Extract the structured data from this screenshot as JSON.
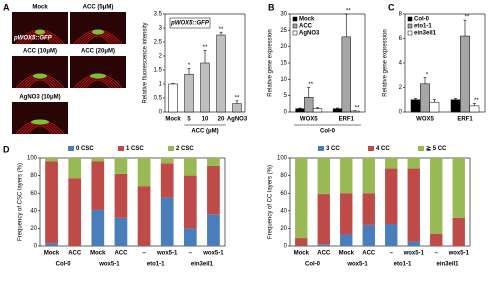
{
  "panel_a": {
    "letter": "A",
    "images": [
      "Mock",
      "ACC (5μM)",
      "ACC (10μM)",
      "ACC (20μM)",
      "AgNO3 (10μM)"
    ],
    "overlay": "pWOX5::GFP"
  },
  "chart_data": [
    {
      "type": "bar",
      "ylabel": "Relative fluorescence intensity",
      "inset_label": "pWOX5::GFP",
      "categories": [
        "Mock",
        "5",
        "10",
        "20",
        "AgNO3"
      ],
      "xlabel": "ACC (μM)",
      "values": [
        1,
        1.35,
        1.75,
        2.75,
        0.3
      ],
      "errors": [
        0.02,
        0.2,
        0.45,
        0.1,
        0.1
      ],
      "annotations": [
        null,
        "*",
        "**",
        "**",
        "**"
      ],
      "colors": [
        "#ffffff",
        "#bfbfbf",
        "#bfbfbf",
        "#bfbfbf",
        "#bfbfbf"
      ],
      "ylim": [
        0,
        3.5
      ],
      "yticks": [
        0,
        0.5,
        1,
        1.5,
        2,
        2.5,
        3,
        3.5
      ]
    },
    {
      "type": "grouped_bar",
      "panel": "B",
      "ylabel": "Relative gene expression",
      "xlabel": "Col-0",
      "categories": [
        "WOX5",
        "ERF1"
      ],
      "series": [
        {
          "name": "Mock",
          "color": "#000000",
          "values": [
            1,
            1
          ],
          "errors": [
            0.2,
            0.2
          ],
          "annotations": [
            null,
            null
          ]
        },
        {
          "name": "ACC",
          "color": "#a6a6a6",
          "values": [
            4.5,
            23
          ],
          "errors": [
            3,
            7
          ],
          "annotations": [
            "**",
            "**"
          ]
        },
        {
          "name": "AgNO3",
          "color": "#ffffff",
          "values": [
            1,
            0.3
          ],
          "errors": [
            0.3,
            0.1
          ],
          "annotations": [
            null,
            "**"
          ]
        }
      ],
      "ylim": [
        0,
        30
      ],
      "yticks": [
        0,
        5,
        10,
        15,
        20,
        25,
        30
      ]
    },
    {
      "type": "grouped_bar",
      "panel": "C",
      "ylabel": "Relative gene expression",
      "categories": [
        "WOX5",
        "ERF1"
      ],
      "series": [
        {
          "name": "Col-0",
          "color": "#000000",
          "values": [
            1,
            1
          ],
          "errors": [
            0.1,
            0.1
          ],
          "annotations": [
            null,
            null
          ]
        },
        {
          "name": "eto1-1",
          "color": "#a6a6a6",
          "values": [
            2.3,
            6.2
          ],
          "errors": [
            0.5,
            1.3
          ],
          "annotations": [
            "*",
            "**"
          ]
        },
        {
          "name": "ein3eil1",
          "color": "#ffffff",
          "values": [
            0.8,
            0.5
          ],
          "errors": [
            0.2,
            0.2
          ],
          "annotations": [
            null,
            "**"
          ]
        }
      ],
      "ylim": [
        0,
        8
      ],
      "yticks": [
        0,
        2,
        4,
        6,
        8
      ]
    },
    {
      "type": "stacked_bar",
      "panel": "D",
      "ylabel": "Frequency of CSC layers (%)",
      "categories": [
        "Mock",
        "ACC",
        "Mock",
        "ACC",
        "–",
        "wox5-1",
        "–",
        "wox5-1"
      ],
      "group_labels": [
        "Col-0",
        "wox5-1",
        "eto1-1",
        "ein3eil1"
      ],
      "series": [
        {
          "name": "0 CSC",
          "color": "#4a7ebb",
          "values": [
            3,
            0,
            41,
            32,
            0,
            55,
            20,
            36
          ]
        },
        {
          "name": "1 CSC",
          "color": "#be4b48",
          "values": [
            93,
            77,
            55,
            50,
            68,
            39,
            60,
            55
          ]
        },
        {
          "name": "2 CSC",
          "color": "#98b954",
          "values": [
            4,
            23,
            4,
            18,
            32,
            6,
            20,
            9
          ]
        }
      ],
      "ylim": [
        0,
        100
      ],
      "yticks": [
        0,
        20,
        40,
        60,
        80,
        100
      ]
    },
    {
      "type": "stacked_bar",
      "ylabel": "Frequency of CC layers (%)",
      "categories": [
        "Mock",
        "ACC",
        "Mock",
        "ACC",
        "–",
        "wox5-1",
        "–",
        "wox5-1"
      ],
      "group_labels": [
        "Col-0",
        "wox5-1",
        "eto1-1",
        "ein3eil1"
      ],
      "series": [
        {
          "name": "3 CC",
          "color": "#4a7ebb",
          "values": [
            0,
            2,
            13,
            24,
            25,
            5,
            0,
            0
          ]
        },
        {
          "name": "4 CC",
          "color": "#be4b48",
          "values": [
            9,
            57,
            47,
            36,
            63,
            83,
            14,
            32
          ]
        },
        {
          "name": "≧ 5 CC",
          "color": "#98b954",
          "values": [
            91,
            41,
            40,
            40,
            12,
            12,
            86,
            68
          ]
        }
      ],
      "ylim": [
        0,
        100
      ],
      "yticks": [
        0,
        20,
        40,
        60,
        80,
        100
      ]
    }
  ]
}
